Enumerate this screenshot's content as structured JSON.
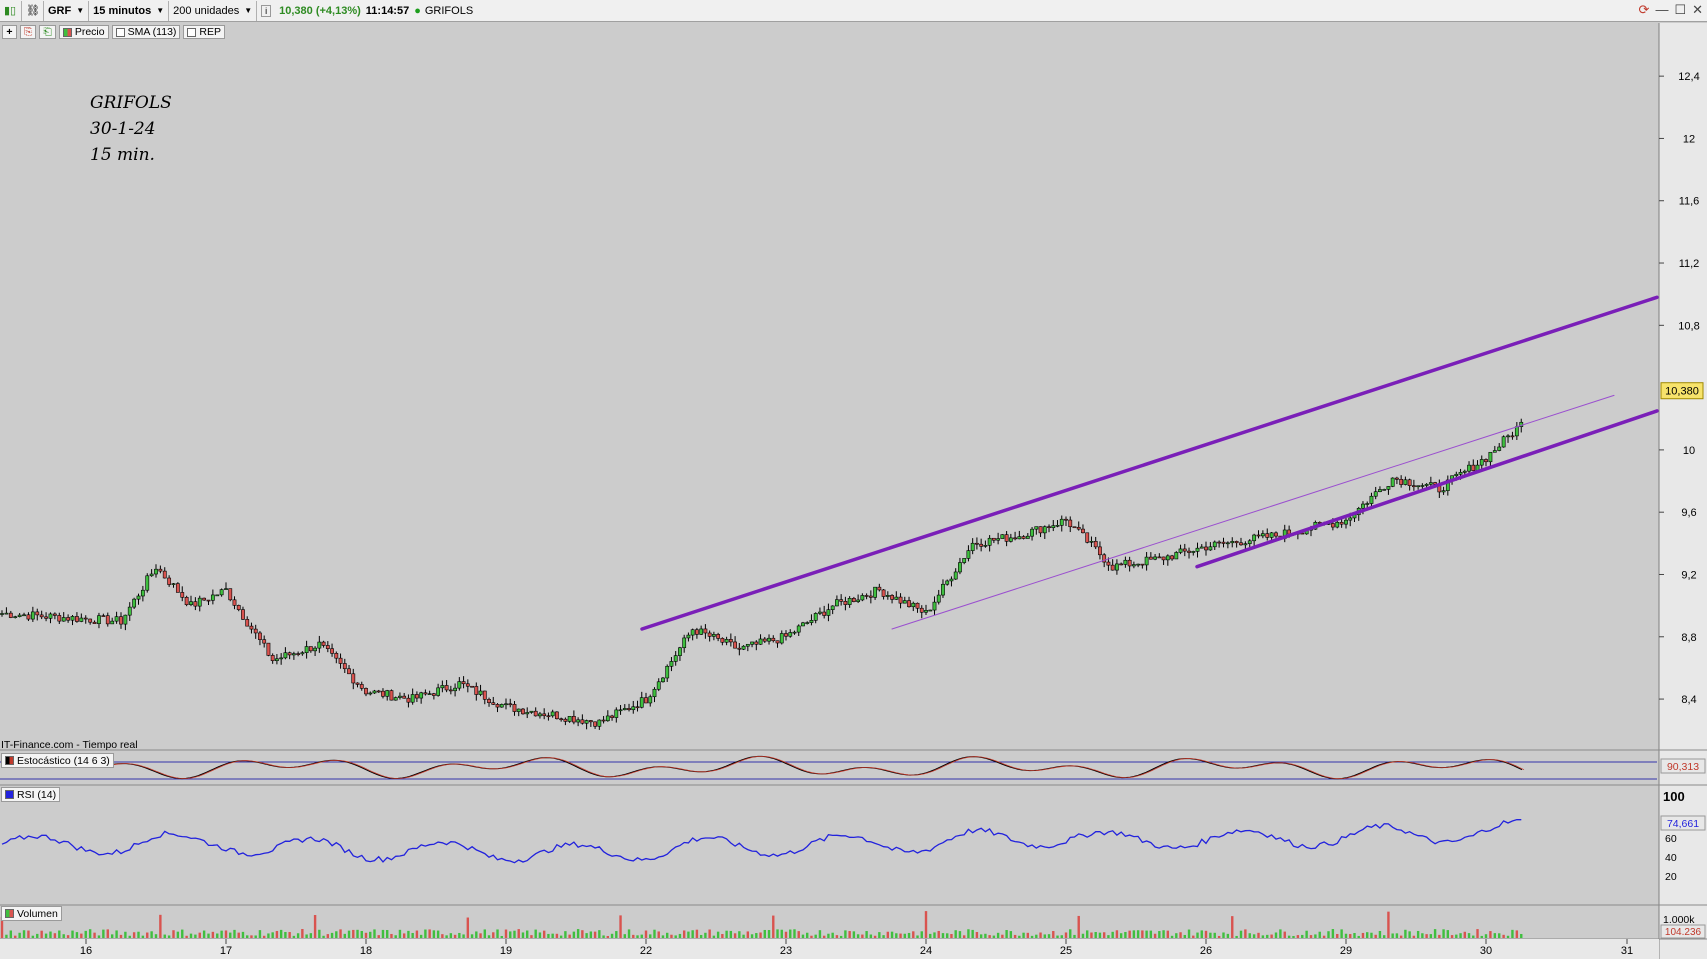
{
  "toolbar": {
    "symbol": "GRF",
    "interval": "15 minutos",
    "units": "200 unidades",
    "quote": "10,380 (+4,13%)",
    "time": "11:14:57",
    "instrument": "GRIFOLS",
    "colors": {
      "up": "#2e8b22",
      "dot": "#1e9e1e"
    }
  },
  "subbar": {
    "price_label": "Precio",
    "sma_label": "SMA (113)",
    "rep_label": "REP"
  },
  "annotation": {
    "line1": "GRIFOLS",
    "line2": "30-1-24",
    "line3": "15 min."
  },
  "source": "IT-Finance.com - Tiempo real",
  "panes": {
    "stochastic": {
      "label": "Estocástico (14 6 3)",
      "value": "90,313"
    },
    "rsi": {
      "label": "RSI (14)",
      "value": "74,661"
    },
    "volume": {
      "label": "Volumen",
      "value": "104.236"
    }
  },
  "chart_data": {
    "type": "candlestick",
    "x_axis": {
      "type": "date",
      "tick_labels": [
        "16",
        "17",
        "18",
        "19",
        "22",
        "23",
        "24",
        "25",
        "26",
        "29",
        "30",
        "31"
      ]
    },
    "y_axis": {
      "ticks": [
        "12,4",
        "12",
        "11,6",
        "11,2",
        "10,8",
        "10",
        "9,6",
        "9,2",
        "8,8",
        "8,4"
      ],
      "ylim": [
        8.15,
        12.6
      ]
    },
    "last_price": "10,380",
    "price_path": [
      [
        "16",
        8.95
      ],
      [
        "16",
        8.9
      ],
      [
        "16",
        9.25
      ],
      [
        "16",
        9.0
      ],
      [
        "17",
        9.1
      ],
      [
        "17",
        8.65
      ],
      [
        "17",
        8.75
      ],
      [
        "18",
        8.45
      ],
      [
        "18",
        8.4
      ],
      [
        "18",
        8.5
      ],
      [
        "19",
        8.35
      ],
      [
        "19",
        8.3
      ],
      [
        "19",
        8.25
      ],
      [
        "22",
        8.4
      ],
      [
        "22",
        8.85
      ],
      [
        "22",
        8.72
      ],
      [
        "23",
        8.8
      ],
      [
        "23",
        9.0
      ],
      [
        "23",
        9.1
      ],
      [
        "24",
        8.95
      ],
      [
        "24",
        9.4
      ],
      [
        "24",
        9.45
      ],
      [
        "25",
        9.55
      ],
      [
        "25",
        9.25
      ],
      [
        "25",
        9.3
      ],
      [
        "26",
        9.38
      ],
      [
        "26",
        9.45
      ],
      [
        "29",
        9.55
      ],
      [
        "29",
        9.82
      ],
      [
        "29",
        9.75
      ],
      [
        "30",
        9.95
      ],
      [
        "30",
        10.38
      ]
    ],
    "trendlines": [
      {
        "from": [
          "22",
          8.85
        ],
        "to": [
          "31",
          10.98
        ],
        "color": "#7a1fb8",
        "width": "thick"
      },
      {
        "from": [
          "26",
          9.25
        ],
        "to": [
          "31",
          10.25
        ],
        "color": "#7a1fb8",
        "width": "thick"
      },
      {
        "from": [
          "23",
          8.85
        ],
        "to": [
          "30",
          10.35
        ],
        "color": "#9a4fcf",
        "width": "thin"
      }
    ],
    "rsi": {
      "levels": [
        "100",
        "60",
        "40",
        "20"
      ],
      "last": 74.661
    },
    "stochastic": {
      "last": 90.313
    },
    "volume": {
      "axis": "1.000k",
      "last": "104.236"
    }
  }
}
